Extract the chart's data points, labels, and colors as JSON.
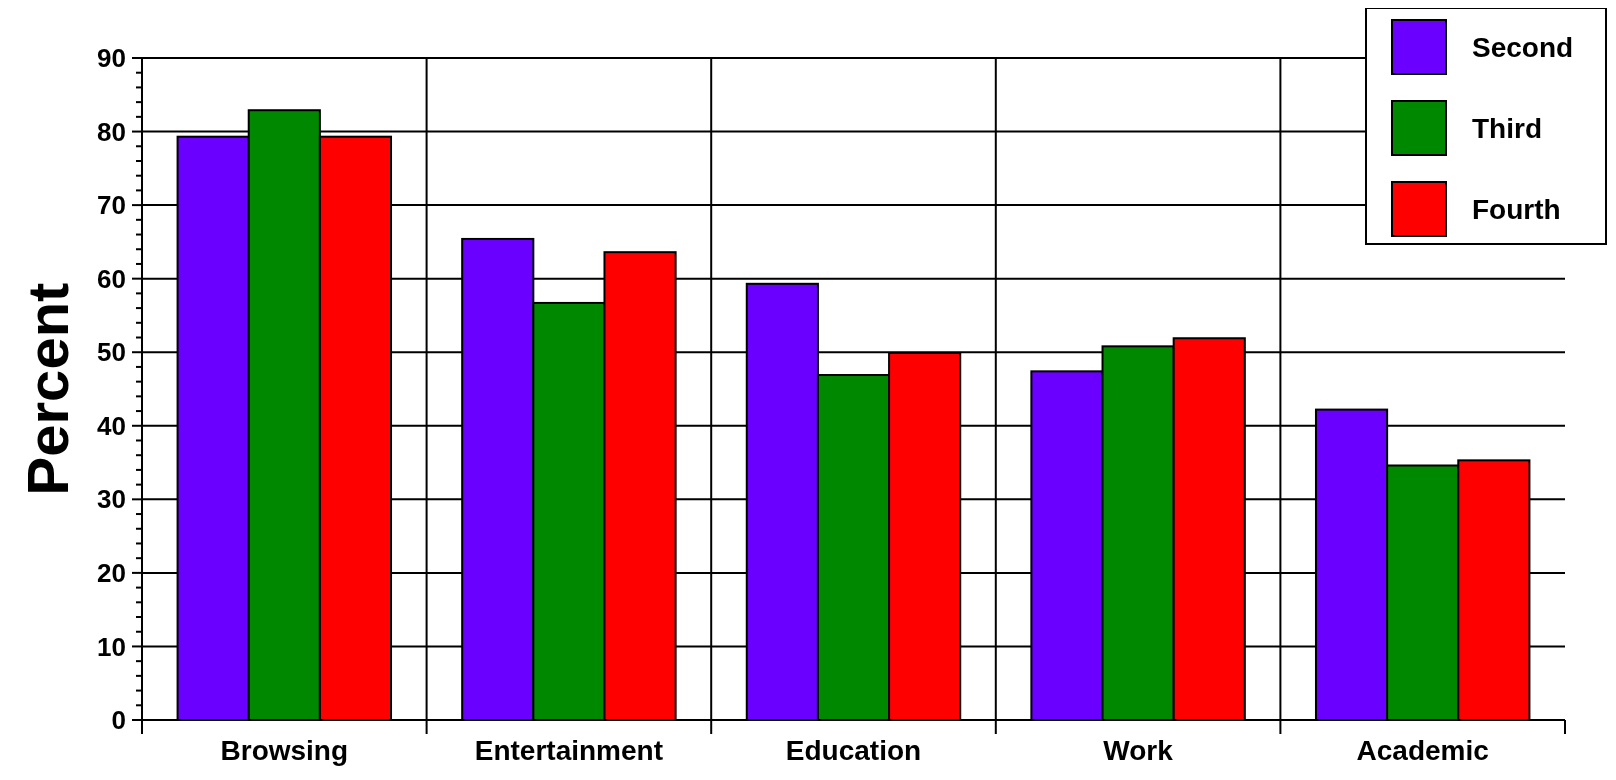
{
  "chart_data": {
    "type": "bar",
    "ylabel": "Percent",
    "categories": [
      "Browsing",
      "Entertainment",
      "Education",
      "Work",
      "Academic"
    ],
    "series": [
      {
        "name": "Second",
        "color": "#6a00ff",
        "values": [
          79.3,
          65.4,
          59.3,
          47.4,
          42.2
        ]
      },
      {
        "name": "Third",
        "color": "#008800",
        "values": [
          82.9,
          56.7,
          46.9,
          50.8,
          34.6
        ]
      },
      {
        "name": "Fourth",
        "color": "#ff0000",
        "values": [
          79.3,
          63.6,
          49.9,
          51.9,
          35.3
        ]
      }
    ],
    "ylim": [
      0,
      90
    ],
    "yticks": [
      0,
      {
        "value": 2,
        "label": null
      },
      {
        "value": 4,
        "label": null
      },
      {
        "value": 6,
        "label": null
      },
      {
        "value": 8,
        "label": null
      },
      10,
      {
        "value": 12,
        "label": null
      },
      {
        "value": 14,
        "label": null
      },
      {
        "value": 16,
        "label": null
      },
      {
        "value": 18,
        "label": null
      },
      20,
      {
        "value": 22,
        "label": null
      },
      {
        "value": 24,
        "label": null
      },
      {
        "value": 26,
        "label": null
      },
      {
        "value": 28,
        "label": null
      },
      30,
      {
        "value": 32,
        "label": null
      },
      {
        "value": 34,
        "label": null
      },
      {
        "value": 36,
        "label": null
      },
      {
        "value": 38,
        "label": null
      },
      40,
      {
        "value": 42,
        "label": null
      },
      {
        "value": 44,
        "label": null
      },
      {
        "value": 46,
        "label": null
      },
      {
        "value": 48,
        "label": null
      },
      50,
      {
        "value": 52,
        "label": null
      },
      {
        "value": 54,
        "label": null
      },
      {
        "value": 56,
        "label": null
      },
      {
        "value": 58,
        "label": null
      },
      60,
      {
        "value": 62,
        "label": null
      },
      {
        "value": 64,
        "label": null
      },
      {
        "value": 66,
        "label": null
      },
      {
        "value": 68,
        "label": null
      },
      70,
      {
        "value": 72,
        "label": null
      },
      {
        "value": 74,
        "label": null
      },
      {
        "value": 76,
        "label": null
      },
      {
        "value": 78,
        "label": null
      },
      80,
      {
        "value": 82,
        "label": null
      },
      {
        "value": 84,
        "label": null
      },
      {
        "value": 86,
        "label": null
      },
      {
        "value": 88,
        "label": null
      },
      90
    ],
    "grid": true,
    "legend": "top right"
  }
}
